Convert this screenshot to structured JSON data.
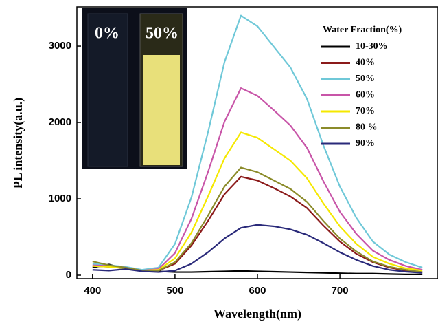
{
  "chart_data": {
    "type": "line",
    "x_label": "Wavelength(nm)",
    "y_label": "PL intensity(a.u.)",
    "legend_title": "Water Fraction(%)",
    "inset_labels": [
      "0%",
      "50%"
    ],
    "x": [
      400,
      420,
      440,
      460,
      480,
      500,
      520,
      540,
      560,
      580,
      600,
      620,
      640,
      660,
      680,
      700,
      720,
      740,
      760,
      780,
      800
    ],
    "series": [
      {
        "name": "10-30%",
        "color": "#000000",
        "values": [
          100,
          140,
          80,
          60,
          50,
          40,
          40,
          45,
          50,
          55,
          50,
          45,
          40,
          35,
          30,
          25,
          20,
          20,
          15,
          10,
          10
        ]
      },
      {
        "name": "40%",
        "color": "#8b1a1a",
        "values": [
          120,
          110,
          90,
          60,
          60,
          150,
          390,
          710,
          1060,
          1290,
          1240,
          1140,
          1030,
          880,
          650,
          440,
          280,
          170,
          100,
          60,
          40
        ]
      },
      {
        "name": "50%",
        "color": "#6fc8d8",
        "values": [
          150,
          130,
          110,
          70,
          100,
          410,
          1020,
          1870,
          2790,
          3400,
          3260,
          2990,
          2720,
          2310,
          1700,
          1160,
          750,
          440,
          270,
          170,
          100
        ]
      },
      {
        "name": "60%",
        "color": "#c855a8",
        "values": [
          130,
          120,
          100,
          60,
          80,
          290,
          740,
          1350,
          2010,
          2450,
          2350,
          2160,
          1960,
          1670,
          1230,
          830,
          540,
          320,
          200,
          120,
          70
        ]
      },
      {
        "name": "70%",
        "color": "#f5e800",
        "values": [
          120,
          110,
          90,
          60,
          70,
          220,
          560,
          1030,
          1530,
          1870,
          1800,
          1650,
          1500,
          1270,
          940,
          640,
          410,
          240,
          150,
          90,
          60
        ]
      },
      {
        "name": "80 %",
        "color": "#8b8b2a",
        "values": [
          180,
          130,
          100,
          60,
          60,
          170,
          420,
          780,
          1160,
          1410,
          1350,
          1240,
          1130,
          960,
          710,
          480,
          310,
          180,
          110,
          70,
          40
        ]
      },
      {
        "name": "90%",
        "color": "#2a2a7a",
        "values": [
          70,
          60,
          80,
          50,
          40,
          60,
          150,
          300,
          480,
          620,
          660,
          640,
          600,
          530,
          420,
          300,
          200,
          120,
          70,
          45,
          30
        ]
      }
    ],
    "xlim": [
      381,
      819
    ],
    "xticks": [
      400,
      500,
      600,
      700
    ],
    "ylim": [
      -45,
      3514
    ],
    "yticks": [
      0,
      1000,
      2000,
      3000
    ]
  }
}
